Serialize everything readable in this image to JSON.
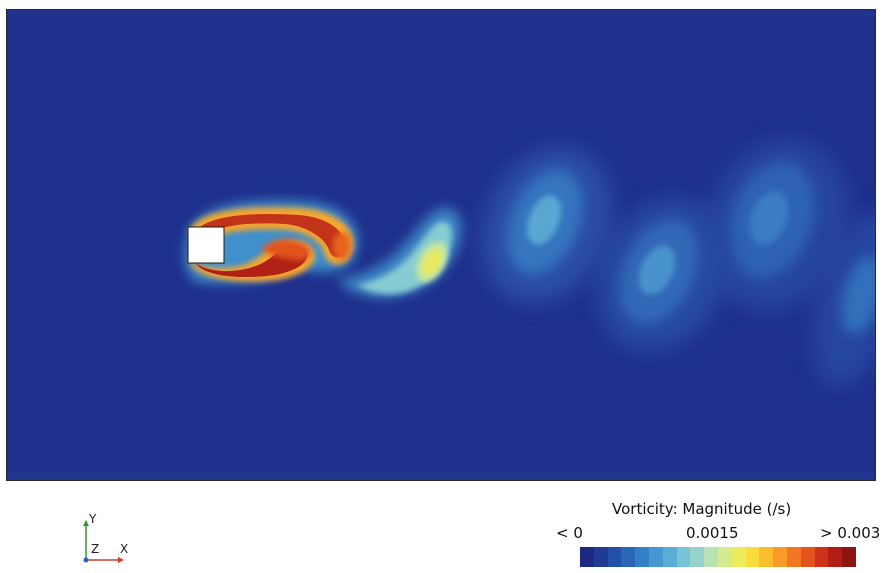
{
  "legend": {
    "title": "Vorticity: Magnitude (/s)",
    "min_label": "< 0",
    "mid_label": "0.0015",
    "max_label": "> 0.003",
    "colors": [
      "#1b2a80",
      "#1f3b96",
      "#2450aa",
      "#2a66b8",
      "#3480c6",
      "#4697cf",
      "#5aaed6",
      "#78c3d6",
      "#97d3cc",
      "#b7e2b2",
      "#d5ea8c",
      "#ecec5c",
      "#f7dc3c",
      "#fbbe2c",
      "#f99b26",
      "#f27722",
      "#e4521d",
      "#cf321a",
      "#b21e16",
      "#8e1412"
    ]
  },
  "axes_triad": {
    "y": "Y",
    "z": "Z",
    "x": "X",
    "y_color": "#2e9a2e",
    "x_color": "#d43a2a",
    "z_color": "#2a5bd4"
  },
  "field": {
    "background_color": "#1e2f8c",
    "obstacle_color": "#ffffff"
  }
}
